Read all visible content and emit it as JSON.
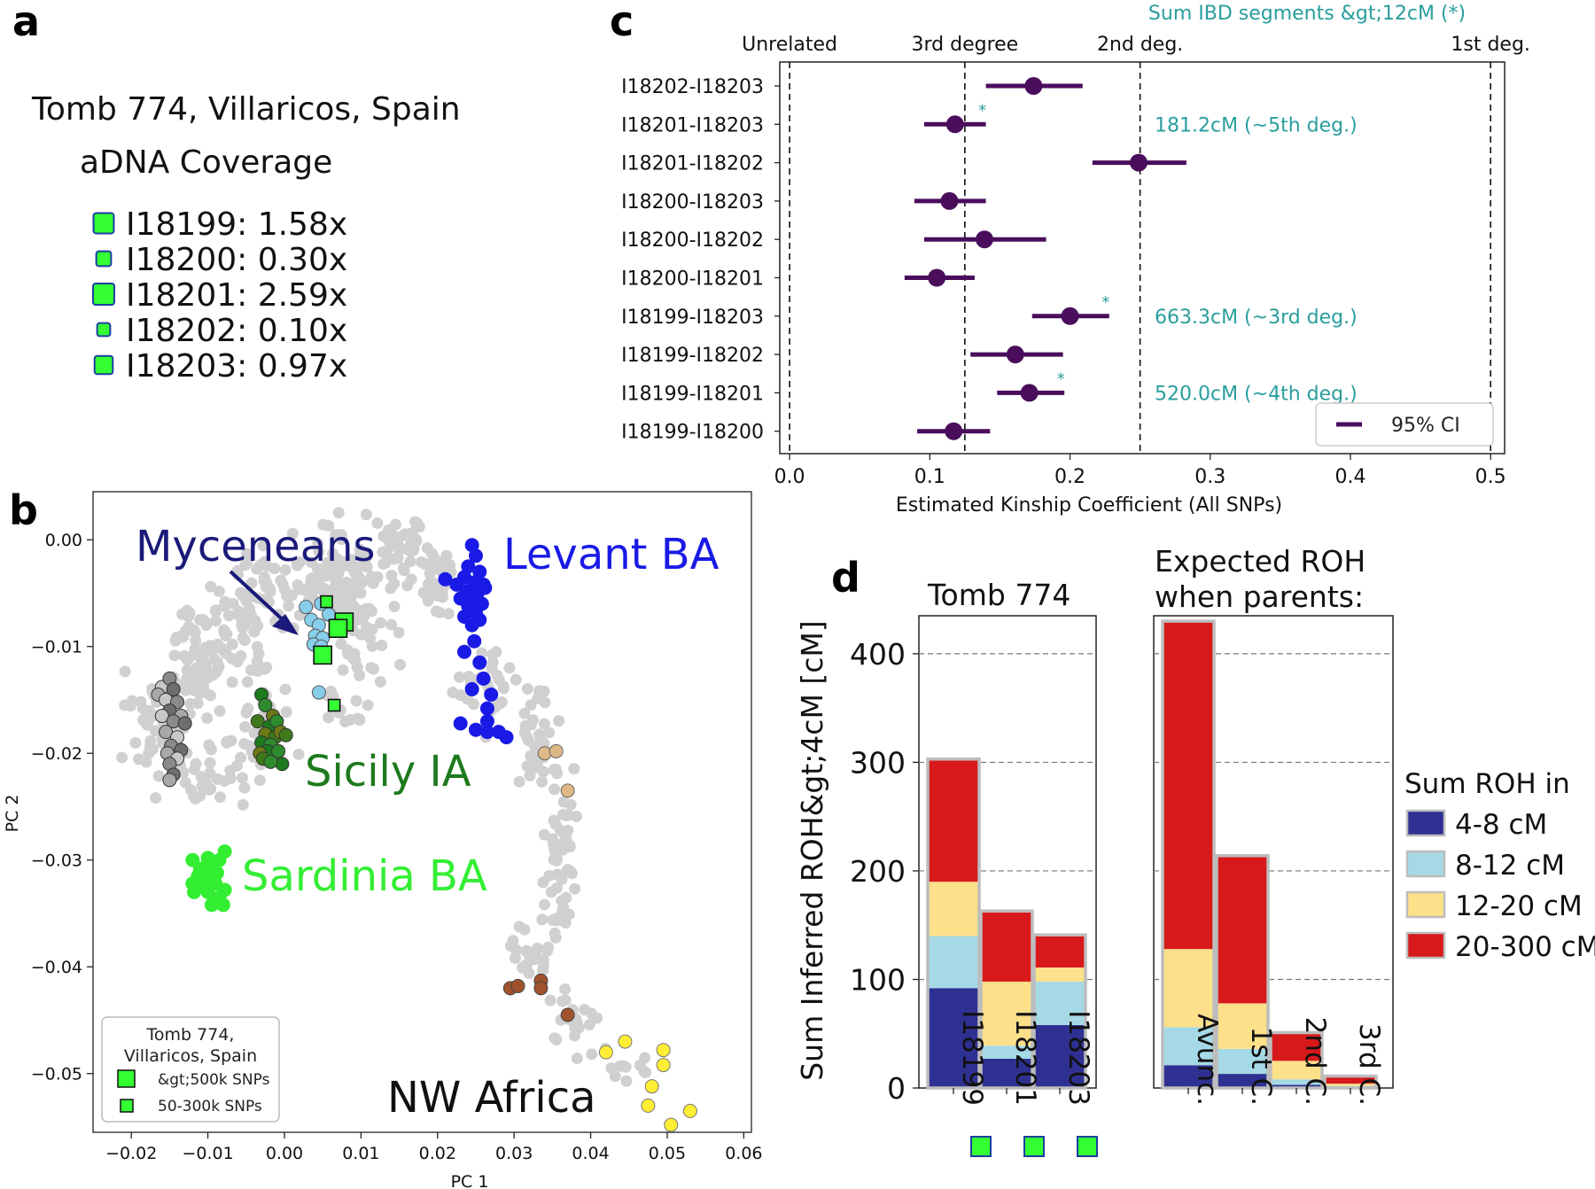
{
  "panel_labels": {
    "a": "a",
    "b": "b",
    "c": "c",
    "d": "d"
  },
  "colors": {
    "bronze_green": "#33ff33",
    "kinship_purple": "#4a0d5c",
    "ibd_teal": "#2a9d9d",
    "grey_points": "#d0d0d0",
    "myceneans": "#87ceeb",
    "levant": "#1a1ae6",
    "sicily": "#1d7a1d",
    "sardinia": "#33ee33",
    "nw_africa": "#ffee33",
    "roh_4_8": "#2e3192",
    "roh_8_12": "#a6d9e6",
    "roh_12_20": "#fde08a",
    "roh_20_300": "#d7191c"
  },
  "panel_a": {
    "title_line1": "Tomb 774, Villaricos, Spain",
    "title_line2": "aDNA Coverage",
    "samples": [
      {
        "label": "I18199: 1.58x",
        "coverage": 1.58
      },
      {
        "label": "I18200: 0.30x",
        "coverage": 0.3
      },
      {
        "label": "I18201: 2.59x",
        "coverage": 2.59
      },
      {
        "label": "I18202: 0.10x",
        "coverage": 0.1
      },
      {
        "label": "I18203: 0.97x",
        "coverage": 0.97
      }
    ]
  },
  "chart_data": [
    {
      "id": "pca",
      "type": "scatter",
      "xlabel": "PC 1",
      "ylabel": "PC 2",
      "xlim": [
        -0.025,
        0.061
      ],
      "ylim": [
        -0.0555,
        0.0045
      ],
      "xticks": [
        -0.02,
        -0.01,
        0.0,
        0.01,
        0.02,
        0.03,
        0.04,
        0.05,
        0.06
      ],
      "xtick_labels": [
        "−0.02",
        "−0.01",
        "0.00",
        "0.01",
        "0.02",
        "0.03",
        "0.04",
        "0.05",
        "0.06"
      ],
      "yticks": [
        0.0,
        -0.01,
        -0.02,
        -0.03,
        -0.04,
        -0.05
      ],
      "ytick_labels": [
        "0.00",
        "−0.01",
        "−0.02",
        "−0.03",
        "−0.04",
        "−0.05"
      ],
      "group_labels": [
        {
          "text": "Myceneans",
          "color": "#1a1a7a"
        },
        {
          "text": "Levant BA",
          "color": "#1a1ae6"
        },
        {
          "text": "Sicily IA",
          "color": "#1d7a1d"
        },
        {
          "text": "Sardinia BA",
          "color": "#33ee33"
        },
        {
          "text": "NW Africa",
          "color": "#111111"
        }
      ],
      "legend": {
        "title_line1": "Tomb 774,",
        "title_line2": "Villaricos, Spain",
        "entries": [
          "&gt;500k SNPs",
          "50-300k SNPs"
        ],
        "placement": "bottom-left"
      },
      "tomb_samples": [
        {
          "x": 0.0055,
          "y": -0.0058,
          "size": "small"
        },
        {
          "x": 0.0078,
          "y": -0.0077,
          "size": "large"
        },
        {
          "x": 0.007,
          "y": -0.0083,
          "size": "large"
        },
        {
          "x": 0.005,
          "y": -0.0108,
          "size": "large"
        },
        {
          "x": 0.0065,
          "y": -0.0155,
          "size": "small"
        }
      ],
      "groups": {
        "myceneans": [
          [
            0.0028,
            -0.0063
          ],
          [
            0.0048,
            -0.006
          ],
          [
            0.0035,
            -0.0075
          ],
          [
            0.0045,
            -0.008
          ],
          [
            0.004,
            -0.009
          ],
          [
            0.005,
            -0.0092
          ],
          [
            0.0038,
            -0.0098
          ],
          [
            0.0048,
            -0.01
          ],
          [
            0.0058,
            -0.007
          ],
          [
            0.0045,
            -0.0143
          ]
        ],
        "levant": [
          [
            0.0245,
            -0.0005
          ],
          [
            0.025,
            -0.0015
          ],
          [
            0.024,
            -0.0025
          ],
          [
            0.0255,
            -0.003
          ],
          [
            0.0235,
            -0.0035
          ],
          [
            0.0248,
            -0.004
          ],
          [
            0.026,
            -0.0042
          ],
          [
            0.0225,
            -0.0042
          ],
          [
            0.0238,
            -0.0048
          ],
          [
            0.0252,
            -0.005
          ],
          [
            0.0262,
            -0.0045
          ],
          [
            0.023,
            -0.0055
          ],
          [
            0.0245,
            -0.0058
          ],
          [
            0.0258,
            -0.006
          ],
          [
            0.024,
            -0.0062
          ],
          [
            0.025,
            -0.0068
          ],
          [
            0.0235,
            -0.0072
          ],
          [
            0.0255,
            -0.0075
          ],
          [
            0.0245,
            -0.008
          ],
          [
            0.021,
            -0.0037
          ],
          [
            0.0248,
            -0.0095
          ],
          [
            0.0235,
            -0.0105
          ],
          [
            0.0255,
            -0.0115
          ],
          [
            0.026,
            -0.013
          ],
          [
            0.0245,
            -0.014
          ],
          [
            0.027,
            -0.0145
          ],
          [
            0.0265,
            -0.0158
          ],
          [
            0.0265,
            -0.017
          ],
          [
            0.023,
            -0.0172
          ],
          [
            0.0265,
            -0.018
          ],
          [
            0.028,
            -0.018
          ],
          [
            0.025,
            -0.0178
          ],
          [
            0.029,
            -0.0185
          ]
        ],
        "sicily": [
          [
            -0.003,
            -0.0145
          ],
          [
            -0.0025,
            -0.0155
          ],
          [
            -0.0015,
            -0.0165
          ],
          [
            -0.0035,
            -0.017
          ],
          [
            -0.002,
            -0.0175
          ],
          [
            -0.001,
            -0.017
          ],
          [
            -0.0025,
            -0.0182
          ],
          [
            -0.0012,
            -0.0185
          ],
          [
            -0.003,
            -0.019
          ],
          [
            -0.0018,
            -0.0192
          ],
          [
            -0.0005,
            -0.018
          ],
          [
            0.0002,
            -0.0183
          ],
          [
            -0.0022,
            -0.0198
          ],
          [
            -0.0008,
            -0.0198
          ],
          [
            -0.0032,
            -0.02
          ],
          [
            -0.0028,
            -0.0205
          ],
          [
            -0.0003,
            -0.021
          ],
          [
            -0.0018,
            -0.0208
          ]
        ],
        "sardinia": [
          [
            -0.012,
            -0.03
          ],
          [
            -0.01,
            -0.0298
          ],
          [
            -0.0085,
            -0.03
          ],
          [
            -0.011,
            -0.0308
          ],
          [
            -0.0095,
            -0.0308
          ],
          [
            -0.0078,
            -0.0292
          ],
          [
            -0.0113,
            -0.0315
          ],
          [
            -0.01,
            -0.0315
          ],
          [
            -0.0088,
            -0.0312
          ],
          [
            -0.012,
            -0.0322
          ],
          [
            -0.0105,
            -0.0323
          ],
          [
            -0.009,
            -0.0322
          ],
          [
            -0.0078,
            -0.0328
          ],
          [
            -0.0118,
            -0.033
          ],
          [
            -0.01,
            -0.033
          ],
          [
            -0.0085,
            -0.0335
          ],
          [
            -0.0095,
            -0.0342
          ],
          [
            -0.008,
            -0.0342
          ]
        ],
        "greys": [
          [
            -0.016,
            -0.0138
          ],
          [
            -0.015,
            -0.013
          ],
          [
            -0.0145,
            -0.014
          ],
          [
            -0.0165,
            -0.0145
          ],
          [
            -0.0155,
            -0.015
          ],
          [
            -0.014,
            -0.0152
          ],
          [
            -0.015,
            -0.016
          ],
          [
            -0.0135,
            -0.0165
          ],
          [
            -0.016,
            -0.0165
          ],
          [
            -0.0145,
            -0.017
          ],
          [
            -0.013,
            -0.0172
          ],
          [
            -0.0155,
            -0.018
          ],
          [
            -0.014,
            -0.0185
          ],
          [
            -0.0148,
            -0.0193
          ],
          [
            -0.0135,
            -0.0197
          ],
          [
            -0.0153,
            -0.02
          ],
          [
            -0.014,
            -0.0205
          ],
          [
            -0.015,
            -0.021
          ],
          [
            -0.0145,
            -0.022
          ],
          [
            -0.015,
            -0.0225
          ]
        ],
        "tan": [
          [
            0.034,
            -0.02
          ],
          [
            0.0355,
            -0.0198
          ],
          [
            0.037,
            -0.0235
          ]
        ],
        "brown": [
          [
            0.0295,
            -0.042
          ],
          [
            0.0305,
            -0.0418
          ],
          [
            0.0335,
            -0.0413
          ],
          [
            0.0335,
            -0.042
          ],
          [
            0.037,
            -0.0445
          ]
        ],
        "yellow": [
          [
            0.042,
            -0.048
          ],
          [
            0.0445,
            -0.047
          ],
          [
            0.0495,
            -0.0492
          ],
          [
            0.0495,
            -0.0478
          ],
          [
            0.048,
            -0.0512
          ],
          [
            0.0475,
            -0.053
          ],
          [
            0.053,
            -0.0535
          ],
          [
            0.0505,
            -0.0548
          ]
        ]
      }
    },
    {
      "id": "kinship",
      "type": "scatter",
      "title": "Sum IBD segments &gt;12cM (*)",
      "xlabel": "Estimated Kinship Coefficient (All SNPs)",
      "xlim": [
        -0.007,
        0.51
      ],
      "xticks": [
        0.0,
        0.1,
        0.2,
        0.3,
        0.4,
        0.5
      ],
      "xtick_labels": [
        "0.0",
        "0.1",
        "0.2",
        "0.3",
        "0.4",
        "0.5"
      ],
      "degree_lines": [
        {
          "x": 0.0,
          "label": "Unrelated"
        },
        {
          "x": 0.125,
          "label": "3rd degree"
        },
        {
          "x": 0.25,
          "label": "2nd deg."
        },
        {
          "x": 0.5,
          "label": "1st deg."
        }
      ],
      "legend": {
        "entry": "95% CI",
        "placement": "bottom-right"
      },
      "pairs": [
        {
          "label": "I18202-I18203",
          "est": 0.174,
          "lo": 0.14,
          "hi": 0.209,
          "star": false,
          "ibd": ""
        },
        {
          "label": "I18201-I18203",
          "est": 0.118,
          "lo": 0.096,
          "hi": 0.14,
          "star": true,
          "ibd": "181.2cM (~5th deg.)"
        },
        {
          "label": "I18201-I18202",
          "est": 0.249,
          "lo": 0.216,
          "hi": 0.283,
          "star": false,
          "ibd": ""
        },
        {
          "label": "I18200-I18203",
          "est": 0.114,
          "lo": 0.089,
          "hi": 0.14,
          "star": false,
          "ibd": ""
        },
        {
          "label": "I18200-I18202",
          "est": 0.139,
          "lo": 0.096,
          "hi": 0.183,
          "star": false,
          "ibd": ""
        },
        {
          "label": "I18200-I18201",
          "est": 0.105,
          "lo": 0.082,
          "hi": 0.132,
          "star": false,
          "ibd": ""
        },
        {
          "label": "I18199-I18203",
          "est": 0.2,
          "lo": 0.173,
          "hi": 0.228,
          "star": true,
          "ibd": "663.3cM (~3rd deg.)"
        },
        {
          "label": "I18199-I18202",
          "est": 0.161,
          "lo": 0.129,
          "hi": 0.195,
          "star": false,
          "ibd": ""
        },
        {
          "label": "I18199-I18201",
          "est": 0.171,
          "lo": 0.148,
          "hi": 0.196,
          "star": true,
          "ibd": "520.0cM (~4th deg.)"
        },
        {
          "label": "I18199-I18200",
          "est": 0.117,
          "lo": 0.091,
          "hi": 0.143,
          "star": false,
          "ibd": ""
        }
      ]
    },
    {
      "id": "roh",
      "type": "bar",
      "stacked": true,
      "ylabel": "Sum Inferred ROH&gt;4cM [cM]",
      "ylim": [
        0,
        435
      ],
      "yticks": [
        0,
        100,
        200,
        300,
        400
      ],
      "legend": {
        "title": "Sum ROH in",
        "entries": [
          "4-8 cM",
          "8-12 cM",
          "12-20 cM",
          "20-300 cM"
        ],
        "placement": "right"
      },
      "subplots": [
        {
          "title_line1": "Tomb 774",
          "title_line2": "",
          "categories": [
            "I18199",
            "I18201",
            "I18203"
          ],
          "series": [
            {
              "name": "4-8 cM",
              "values": [
                92,
                27,
                58
              ]
            },
            {
              "name": "8-12 cM",
              "values": [
                48,
                12,
                40
              ]
            },
            {
              "name": "12-20 cM",
              "values": [
                50,
                59,
                13
              ]
            },
            {
              "name": "20-300 cM",
              "values": [
                113,
                65,
                30
              ]
            }
          ]
        },
        {
          "title_line1": "Expected ROH",
          "title_line2": "when parents:",
          "categories": [
            "Avunc.",
            "1st C.",
            "2nd C.",
            "3rd C."
          ],
          "series": [
            {
              "name": "4-8 cM",
              "values": [
                21,
                13,
                3,
                1
              ]
            },
            {
              "name": "8-12 cM",
              "values": [
                35,
                23,
                5,
                1
              ]
            },
            {
              "name": "12-20 cM",
              "values": [
                72,
                42,
                17,
                2
              ]
            },
            {
              "name": "20-300 cM",
              "values": [
                302,
                136,
                26,
                7
              ]
            }
          ]
        }
      ]
    }
  ]
}
